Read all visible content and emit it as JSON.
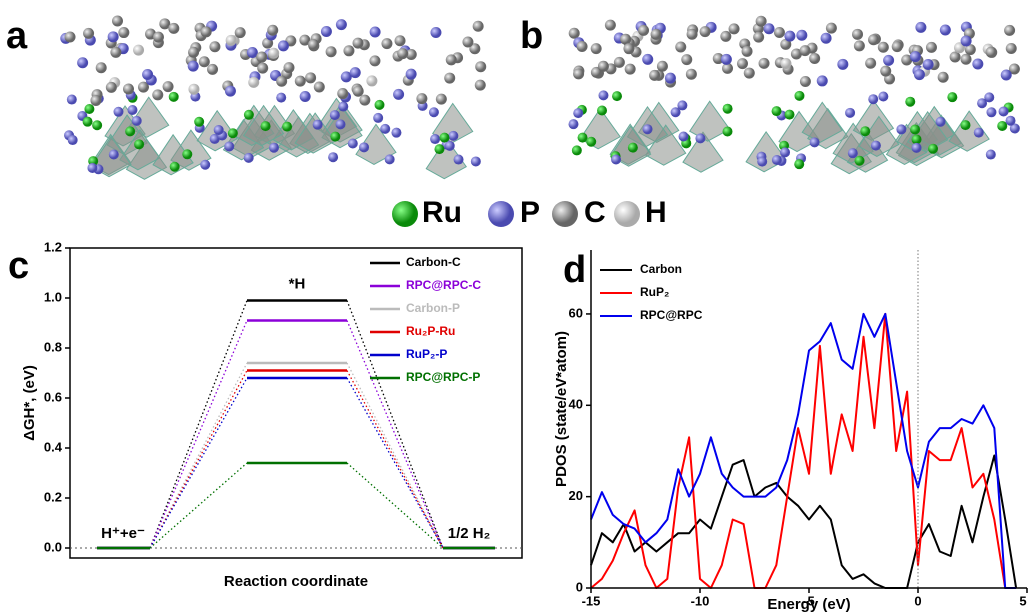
{
  "panel_labels": [
    "a",
    "b",
    "c",
    "d"
  ],
  "atoms": [
    "Ru",
    "P",
    "C",
    "H"
  ],
  "chart_data": [
    {
      "type": "energy-diagram",
      "categories": [
        "H⁺+e⁻",
        "*H",
        "1/2 H₂"
      ],
      "x_label": "Reaction coordinate",
      "y_label": "ΔGH*, (eV)",
      "ylim": [
        -0.04,
        1.2
      ],
      "yticks": [
        {
          "value": 0,
          "label": "0.0"
        },
        0.2,
        0.4,
        0.6,
        0.8,
        {
          "value": 1,
          "label": "1.0"
        },
        1.2
      ],
      "series": [
        {
          "name": "Carbon-C",
          "color": "#000000",
          "values": [
            0,
            0.99,
            0
          ]
        },
        {
          "name": "RPC@RPC-C",
          "color": "#8b00d8",
          "values": [
            0,
            0.91,
            0
          ]
        },
        {
          "name": "Carbon-P",
          "color": "#bbbbbb",
          "values": [
            0,
            0.74,
            0
          ]
        },
        {
          "name": "Ru₂P-Ru",
          "color": "#e00000",
          "values": [
            0,
            0.71,
            0
          ]
        },
        {
          "name": "RuP₂-P",
          "color": "#0000cc",
          "values": [
            0,
            0.68,
            0
          ]
        },
        {
          "name": "RPC@RPC-P",
          "color": "#007000",
          "values": [
            0,
            0.34,
            0
          ]
        }
      ]
    },
    {
      "type": "line",
      "x_label": "Energy (eV)",
      "y_label": "PDOS (state/eV*atom)",
      "xlim": [
        -15,
        5
      ],
      "xticks": [
        -15,
        -10,
        -5,
        0,
        5
      ],
      "ylim": [
        0,
        74
      ],
      "yticks": [
        0,
        20,
        40,
        60
      ],
      "x": [
        -15,
        -14.5,
        -14,
        -13.5,
        -13,
        -12.5,
        -12,
        -11.5,
        -11,
        -10.5,
        -10,
        -9.5,
        -9,
        -8.5,
        -8,
        -7.5,
        -7,
        -6.5,
        -6,
        -5.5,
        -5,
        -4.5,
        -4,
        -3.5,
        -3,
        -2.5,
        -2,
        -1.5,
        -1,
        -0.5,
        0,
        0.5,
        1,
        1.5,
        2,
        2.5,
        3,
        3.5,
        4,
        4.5
      ],
      "series": [
        {
          "name": "Carbon",
          "color": "#000000",
          "values": [
            5,
            12,
            10,
            14,
            8,
            10,
            8,
            10,
            12,
            12,
            15,
            13,
            20,
            27,
            28,
            20,
            22,
            23,
            20,
            18,
            15,
            18,
            15,
            5,
            2,
            3,
            1,
            0,
            0,
            0,
            10,
            14,
            8,
            7,
            18,
            10,
            20,
            29,
            15,
            0
          ]
        },
        {
          "name": "RuP₂",
          "color": "#ff0000",
          "values": [
            0,
            2,
            6,
            12,
            17,
            5,
            0,
            2,
            22,
            33,
            2,
            0,
            5,
            15,
            14,
            0,
            0,
            5,
            20,
            35,
            25,
            53,
            25,
            38,
            30,
            55,
            35,
            60,
            30,
            43,
            5,
            30,
            28,
            28,
            35,
            22,
            25,
            15,
            0,
            0
          ]
        },
        {
          "name": "RPC@RPC",
          "color": "#0000ee",
          "values": [
            15,
            21,
            16,
            14,
            13,
            10,
            12,
            15,
            26,
            20,
            25,
            33,
            25,
            22,
            20,
            20,
            20,
            22,
            28,
            38,
            52,
            54,
            58,
            50,
            48,
            60,
            55,
            60,
            45,
            30,
            22,
            32,
            35,
            35,
            37,
            36,
            40,
            35,
            0,
            0
          ]
        }
      ]
    }
  ]
}
